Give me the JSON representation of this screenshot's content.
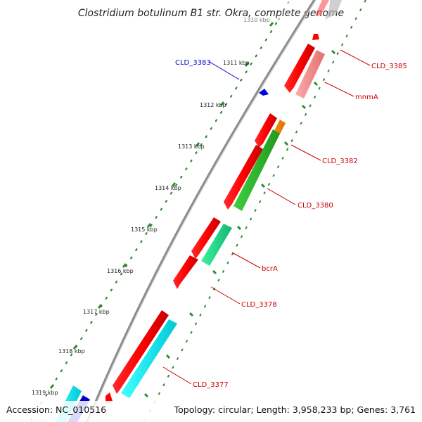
{
  "title": "Clostridium botulinum B1 str. Okra, complete genome",
  "footer": {
    "accession": "Accession: NC_010516",
    "topology": "Topology: circular; Length: 3,958,233 bp; Genes: 3,761"
  },
  "colors": {
    "backbone": "#8c8c8c",
    "tick_dots": "#2e8b2e",
    "label_red": "#cc0000",
    "label_blue": "#0000cc"
  },
  "ticks": [
    {
      "label": "1310 kbp",
      "faded": true
    },
    {
      "label": "1311 kbp"
    },
    {
      "label": "1312 kbp"
    },
    {
      "label": "1313 kbp"
    },
    {
      "label": "1314 kbp"
    },
    {
      "label": "1315 kbp"
    },
    {
      "label": "1316 kbp"
    },
    {
      "label": "1317 kbp"
    },
    {
      "label": "1318 kbp"
    },
    {
      "label": "1319 kbp"
    }
  ],
  "gene_labels": [
    {
      "id": "CLD_3383",
      "color": "blue"
    },
    {
      "id": "CLD_3385",
      "color": "red"
    },
    {
      "id": "mnmA",
      "color": "red"
    },
    {
      "id": "CLD_3382",
      "color": "red"
    },
    {
      "id": "CLD_3380",
      "color": "red"
    },
    {
      "id": "bcrA",
      "color": "red"
    },
    {
      "id": "CLD_3378",
      "color": "red"
    },
    {
      "id": "CLD_3377",
      "color": "red"
    }
  ]
}
